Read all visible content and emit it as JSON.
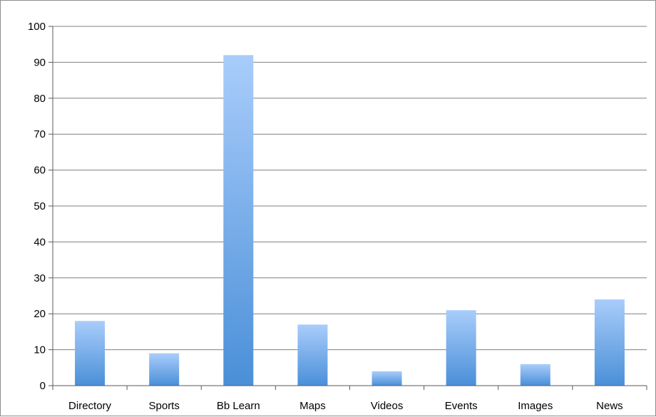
{
  "chart_data": {
    "type": "bar",
    "categories": [
      "Directory",
      "Sports",
      "Bb Learn",
      "Maps",
      "Videos",
      "Events",
      "Images",
      "News"
    ],
    "values": [
      18,
      9,
      92,
      17,
      4,
      21,
      6,
      24
    ],
    "title": "",
    "xlabel": "",
    "ylabel": "",
    "ylim": [
      0,
      100
    ],
    "yticks": [
      0,
      10,
      20,
      30,
      40,
      50,
      60,
      70,
      80,
      90,
      100
    ],
    "grid": true,
    "legend": "none",
    "colors": {
      "bar_top": "#a9cdfb",
      "bar_bottom": "#4a8fd8",
      "gridline": "#7f7f7f",
      "axis": "#5a5a5a"
    }
  }
}
